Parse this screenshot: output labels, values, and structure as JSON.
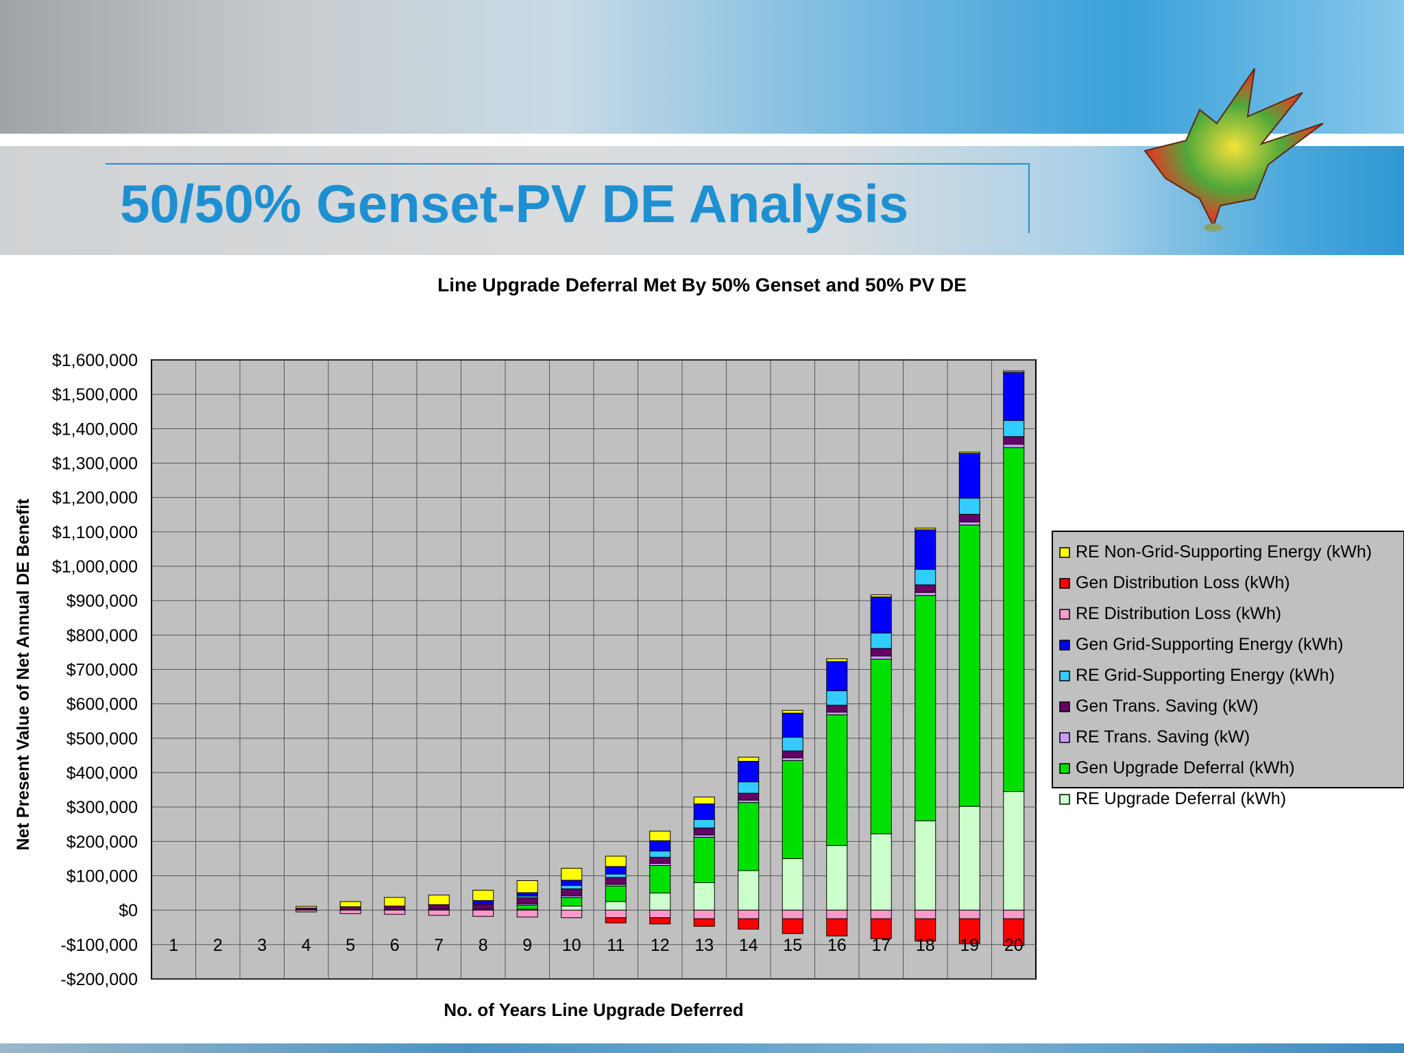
{
  "slide": {
    "title": "50/50% Genset-PV DE Analysis"
  },
  "colors": {
    "title": "#1e90d2",
    "plot_bg": "#c0c0c0",
    "legend_bg": "#c0c0c0"
  },
  "chart_data": {
    "type": "bar",
    "stacked": true,
    "title": "Line Upgrade Deferral Met By 50% Genset and 50% PV DE",
    "xlabel": "No. of Years Line Upgrade Deferred",
    "ylabel": "Net Present Value of Net Annual DE Benefit",
    "ylim": [
      -200000,
      1600000
    ],
    "yticks": [
      -200000,
      -100000,
      0,
      100000,
      200000,
      300000,
      400000,
      500000,
      600000,
      700000,
      800000,
      900000,
      1000000,
      1100000,
      1200000,
      1300000,
      1400000,
      1500000,
      1600000
    ],
    "ytick_labels": [
      "-$200,000",
      "-$100,000",
      "$0",
      "$100,000",
      "$200,000",
      "$300,000",
      "$400,000",
      "$500,000",
      "$600,000",
      "$700,000",
      "$800,000",
      "$900,000",
      "$1,000,000",
      "$1,100,000",
      "$1,200,000",
      "$1,300,000",
      "$1,400,000",
      "$1,500,000",
      "$1,600,000"
    ],
    "categories": [
      "1",
      "2",
      "3",
      "4",
      "5",
      "6",
      "7",
      "8",
      "9",
      "10",
      "11",
      "12",
      "13",
      "14",
      "15",
      "16",
      "17",
      "18",
      "19",
      "20"
    ],
    "grid": true,
    "legend_position": "right",
    "positive_series": [
      {
        "name": "RE Upgrade Deferral (kWh)",
        "color": "#ccffcc",
        "values": [
          0,
          0,
          0,
          0,
          0,
          0,
          0,
          0,
          3000,
          12000,
          25000,
          50000,
          80000,
          115000,
          150000,
          188000,
          222000,
          260000,
          302000,
          345000
        ]
      },
      {
        "name": "Gen Upgrade Deferral (kWh)",
        "color": "#00e000",
        "values": [
          0,
          0,
          0,
          0,
          0,
          0,
          0,
          0,
          12000,
          25000,
          45000,
          80000,
          132000,
          198000,
          285000,
          380000,
          508000,
          655000,
          818000,
          1000000
        ]
      },
      {
        "name": "RE Trans. Saving (kW)",
        "color": "#cc99ff",
        "values": [
          0,
          0,
          0,
          1000,
          2000,
          2000,
          3000,
          3000,
          4000,
          5000,
          5000,
          6000,
          7000,
          7000,
          8000,
          8000,
          9000,
          9000,
          9000,
          10000
        ]
      },
      {
        "name": "Gen Trans. Saving (kW)",
        "color": "#660066",
        "values": [
          0,
          0,
          0,
          5000,
          8000,
          10000,
          13000,
          15000,
          17000,
          20000,
          20000,
          18000,
          20000,
          20000,
          20000,
          20000,
          22000,
          22000,
          22000,
          22000
        ]
      },
      {
        "name": "RE Grid-Supporting Energy (kWh)",
        "color": "#33ccff",
        "values": [
          0,
          0,
          0,
          0,
          0,
          0,
          0,
          0,
          5000,
          10000,
          10000,
          18000,
          25000,
          33000,
          40000,
          42000,
          45000,
          45000,
          47000,
          47000
        ]
      },
      {
        "name": "Gen Grid-Supporting Energy (kWh)",
        "color": "#0000ff",
        "values": [
          0,
          0,
          0,
          0,
          0,
          0,
          0,
          10000,
          10000,
          15000,
          22000,
          30000,
          45000,
          60000,
          70000,
          85000,
          105000,
          115000,
          130000,
          140000
        ]
      },
      {
        "name": "RE Non-Grid-Supporting Energy (kWh)",
        "color": "#ffff00",
        "values": [
          0,
          0,
          0,
          5000,
          15000,
          25000,
          28000,
          30000,
          35000,
          35000,
          30000,
          28000,
          20000,
          12000,
          8000,
          8000,
          6000,
          5000,
          4000,
          4000
        ]
      }
    ],
    "negative_series": [
      {
        "name": "RE Distribution Loss (kWh)",
        "color": "#ff99cc",
        "values": [
          0,
          0,
          0,
          -5000,
          -10000,
          -12000,
          -15000,
          -18000,
          -20000,
          -22000,
          -22000,
          -22000,
          -25000,
          -25000,
          -25000,
          -25000,
          -25000,
          -25000,
          -25000,
          -25000
        ]
      },
      {
        "name": "Gen Distribution Loss (kWh)",
        "color": "#ff0000",
        "values": [
          0,
          0,
          0,
          0,
          0,
          0,
          0,
          0,
          0,
          0,
          -15000,
          -18000,
          -22000,
          -30000,
          -43000,
          -50000,
          -58000,
          -65000,
          -72000,
          -78000
        ]
      }
    ],
    "legend_order": [
      "RE Non-Grid-Supporting Energy (kWh)",
      "Gen Distribution Loss (kWh)",
      "RE Distribution Loss (kWh)",
      "Gen Grid-Supporting Energy (kWh)",
      "RE Grid-Supporting Energy (kWh)",
      "Gen Trans. Saving (kW)",
      "RE Trans. Saving (kW)",
      "Gen Upgrade Deferral (kWh)",
      "RE Upgrade Deferral (kWh)"
    ]
  }
}
